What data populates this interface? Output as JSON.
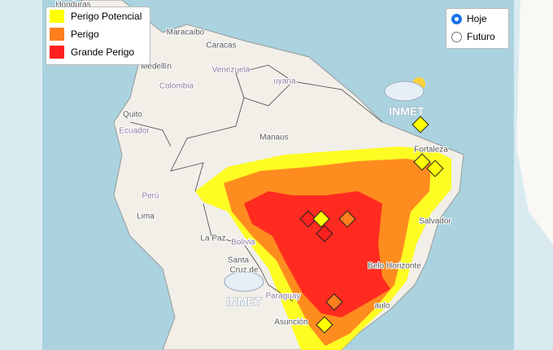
{
  "legend": {
    "items": [
      {
        "label": "Perigo Potencial",
        "color": "#ffff00"
      },
      {
        "label": "Perigo",
        "color": "#ff7f1e"
      },
      {
        "label": "Grande Perigo",
        "color": "#ff2020"
      }
    ]
  },
  "controls": {
    "options": [
      "Hoje",
      "Futuro"
    ]
  },
  "places": [
    "Honduras",
    "Maracaibo",
    "Caracas",
    "Medellín",
    "Venezuela",
    "Colombia",
    "uyana",
    "Quito",
    "Ecuador",
    "Manaus",
    "Fortaleza",
    "Perú",
    "Lima",
    "La Paz",
    "Bolivia",
    "Santa",
    "Cruz de",
    "Salvador",
    "Belo Horizonte",
    "Paraguay",
    "Asunción",
    "aulo"
  ],
  "logos": [
    "INMET",
    "INMET"
  ]
}
